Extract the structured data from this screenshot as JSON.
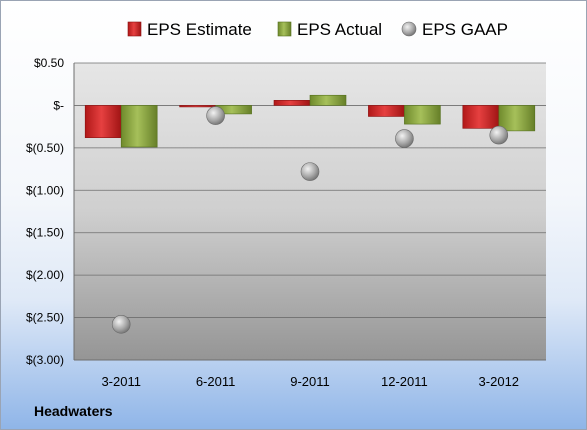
{
  "chart_data": {
    "type": "bar",
    "title": "",
    "categories": [
      "3-2011",
      "6-2011",
      "9-2011",
      "12-2011",
      "3-2012"
    ],
    "series": [
      {
        "name": "EPS Estimate",
        "kind": "bar",
        "color": "#d42a2a",
        "values": [
          -0.38,
          -0.01,
          0.06,
          -0.13,
          -0.27
        ]
      },
      {
        "name": "EPS Actual",
        "kind": "bar",
        "color": "#8aa440",
        "values": [
          -0.49,
          -0.1,
          0.12,
          -0.22,
          -0.3
        ]
      },
      {
        "name": "EPS GAAP",
        "kind": "scatter",
        "color": "#a0a0a0",
        "values": [
          -2.58,
          -0.12,
          -0.78,
          -0.39,
          -0.35
        ]
      }
    ],
    "ylim": [
      -3.0,
      0.5
    ],
    "y_ticks": [
      0.5,
      0.0,
      -0.5,
      -1.0,
      -1.5,
      -2.0,
      -2.5,
      -3.0
    ],
    "y_tick_labels": [
      "$0.50",
      "$-",
      "$(0.50)",
      "$(1.00)",
      "$(1.50)",
      "$(2.00)",
      "$(2.50)",
      "$(3.00)"
    ],
    "grid": true,
    "legend_position": "top"
  },
  "company": "Headwaters"
}
